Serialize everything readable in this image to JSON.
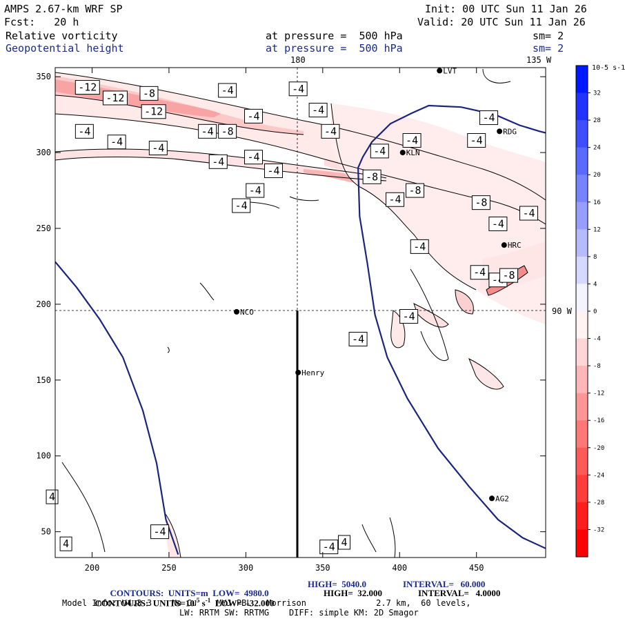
{
  "header": {
    "model": "AMPS 2.67-km WRF SP",
    "forecast": "Fcst:   20 h",
    "field1": "Relative vorticity",
    "field2": "Geopotential height",
    "pressure1": "at pressure =  500 hPa",
    "pressure2": "at pressure =  500 hPa",
    "init": "Init: 00 UTC Sun 11 Jan 26",
    "valid": "Valid: 20 UTC Sun 11 Jan 26",
    "sm1": "sm= 2",
    "sm2": "sm= 2"
  },
  "map_labels": {
    "lon180": "180",
    "lon135w": "135 W",
    "lon90w": "90 W"
  },
  "stations": [
    {
      "name": "LVT",
      "x": 426,
      "y": 354
    },
    {
      "name": "RDG",
      "x": 465,
      "y": 314
    },
    {
      "name": "KLN",
      "x": 402,
      "y": 300
    },
    {
      "name": "HRC",
      "x": 468,
      "y": 239
    },
    {
      "name": "NCO",
      "x": 294,
      "y": 195
    },
    {
      "name": "Henry",
      "x": 334,
      "y": 155
    },
    {
      "name": "AG2",
      "x": 460,
      "y": 72
    }
  ],
  "chart_data": {
    "type": "heatmap",
    "xlim": [
      176,
      495
    ],
    "ylim": [
      33,
      356
    ],
    "xticks": [
      200,
      250,
      300,
      350,
      400,
      450
    ],
    "yticks": [
      50,
      100,
      150,
      200,
      250,
      300,
      350
    ],
    "contour_labels": [
      {
        "text": "-12",
        "x": 197,
        "y": 343
      },
      {
        "text": "-12",
        "x": 215,
        "y": 336
      },
      {
        "text": "-8",
        "x": 237,
        "y": 339
      },
      {
        "text": "-12",
        "x": 240,
        "y": 327
      },
      {
        "text": "-4",
        "x": 288,
        "y": 341
      },
      {
        "text": "-4",
        "x": 195,
        "y": 314
      },
      {
        "text": "-4",
        "x": 216,
        "y": 307
      },
      {
        "text": "-4",
        "x": 243,
        "y": 303
      },
      {
        "text": "-4",
        "x": 275,
        "y": 314
      },
      {
        "text": "-8",
        "x": 288,
        "y": 314
      },
      {
        "text": "-4",
        "x": 305,
        "y": 324
      },
      {
        "text": "-4",
        "x": 334,
        "y": 342
      },
      {
        "text": "-4",
        "x": 347,
        "y": 328
      },
      {
        "text": "-4",
        "x": 355,
        "y": 314
      },
      {
        "text": "-4",
        "x": 282,
        "y": 294
      },
      {
        "text": "-4",
        "x": 305,
        "y": 297
      },
      {
        "text": "-4",
        "x": 318,
        "y": 288
      },
      {
        "text": "-8",
        "x": 382,
        "y": 284
      },
      {
        "text": "-4",
        "x": 387,
        "y": 301
      },
      {
        "text": "-4",
        "x": 408,
        "y": 308
      },
      {
        "text": "-4",
        "x": 458,
        "y": 323
      },
      {
        "text": "-4",
        "x": 450,
        "y": 308
      },
      {
        "text": "-4",
        "x": 306,
        "y": 275
      },
      {
        "text": "-4",
        "x": 297,
        "y": 265
      },
      {
        "text": "-4",
        "x": 397,
        "y": 269
      },
      {
        "text": "-8",
        "x": 410,
        "y": 275
      },
      {
        "text": "-8",
        "x": 453,
        "y": 267
      },
      {
        "text": "-4",
        "x": 484,
        "y": 260
      },
      {
        "text": "-4",
        "x": 464,
        "y": 253
      },
      {
        "text": "-4",
        "x": 413,
        "y": 238
      },
      {
        "text": "-4",
        "x": 452,
        "y": 221
      },
      {
        "text": "-4",
        "x": 464,
        "y": 216
      },
      {
        "text": "-8",
        "x": 471,
        "y": 219
      },
      {
        "text": "-4",
        "x": 406,
        "y": 192
      },
      {
        "text": "-4",
        "x": 373,
        "y": 177
      },
      {
        "text": "-4",
        "x": 354,
        "y": 40
      },
      {
        "text": "4",
        "x": 364,
        "y": 43
      },
      {
        "text": "4",
        "x": 174,
        "y": 73
      },
      {
        "text": "4",
        "x": 183,
        "y": 42
      },
      {
        "text": "-4",
        "x": 244,
        "y": 50
      }
    ],
    "geopotential_contours": [
      {
        "level": "4980",
        "points": [
          [
            176,
            228
          ],
          [
            190,
            211
          ],
          [
            205,
            190
          ],
          [
            220,
            165
          ],
          [
            233,
            130
          ],
          [
            242,
            95
          ],
          [
            248,
            58
          ],
          [
            256,
            35
          ]
        ]
      },
      {
        "level": "5040",
        "points": [
          [
            495,
            39
          ],
          [
            480,
            46
          ],
          [
            464,
            58
          ],
          [
            445,
            80
          ],
          [
            425,
            105
          ],
          [
            405,
            138
          ],
          [
            392,
            165
          ],
          [
            384,
            193
          ],
          [
            379,
            227
          ],
          [
            374,
            258
          ],
          [
            373,
            290
          ],
          [
            376,
            297
          ],
          [
            382,
            307
          ],
          [
            394,
            319
          ],
          [
            408,
            326
          ],
          [
            419,
            331
          ],
          [
            440,
            330
          ],
          [
            462,
            325
          ],
          [
            478,
            318
          ],
          [
            491,
            314
          ],
          [
            495,
            313
          ]
        ]
      }
    ],
    "meridians": [
      {
        "label": "180",
        "x": 333
      },
      {
        "label": "90 W",
        "y": 195
      }
    ],
    "colorbar": {
      "unit_label": "10-5 s-1",
      "levels": [
        32,
        28,
        24,
        20,
        16,
        12,
        8,
        4,
        0,
        -4,
        -8,
        -12,
        -16,
        -20,
        -24,
        -28,
        -32
      ],
      "colors_positive": [
        "#0019ff",
        "#2233ff",
        "#3f4fff",
        "#5a69ff",
        "#7883ff",
        "#979eff",
        "#b6bbff",
        "#d6d9ff",
        "#f3f4ff"
      ],
      "colors_negative": [
        "#fff3f3",
        "#ffd6d6",
        "#ffb7b7",
        "#ff9797",
        "#ff7878",
        "#ff5a5a",
        "#ff3d3d",
        "#ff1e1e",
        "#ff0000"
      ]
    }
  },
  "footer": {
    "line1_a": "CONTOURS:  UNITS=m  LOW=  4980.0",
    "line1_b": "HIGH=  5040.0",
    "line1_c": "INTERVAL=   60.000",
    "line2_a": "CONTOURS:  UNITS=10",
    "line2_exp": "-5",
    "line2_s": " s",
    "line2_sexp": "-1",
    "line2_b": "  LOW=  -32.000",
    "line2_c": "HIGH=  32.000",
    "line2_d": "INTERVAL=   4.0000",
    "line3": "Model Info: V4.3.3    No Cu    MYJ PBL   Morrison              2.7 km,  60 levels,",
    "line4": "LW: RRTM SW: RRTMG    DIFF: simple KM: 2D Smagor"
  }
}
